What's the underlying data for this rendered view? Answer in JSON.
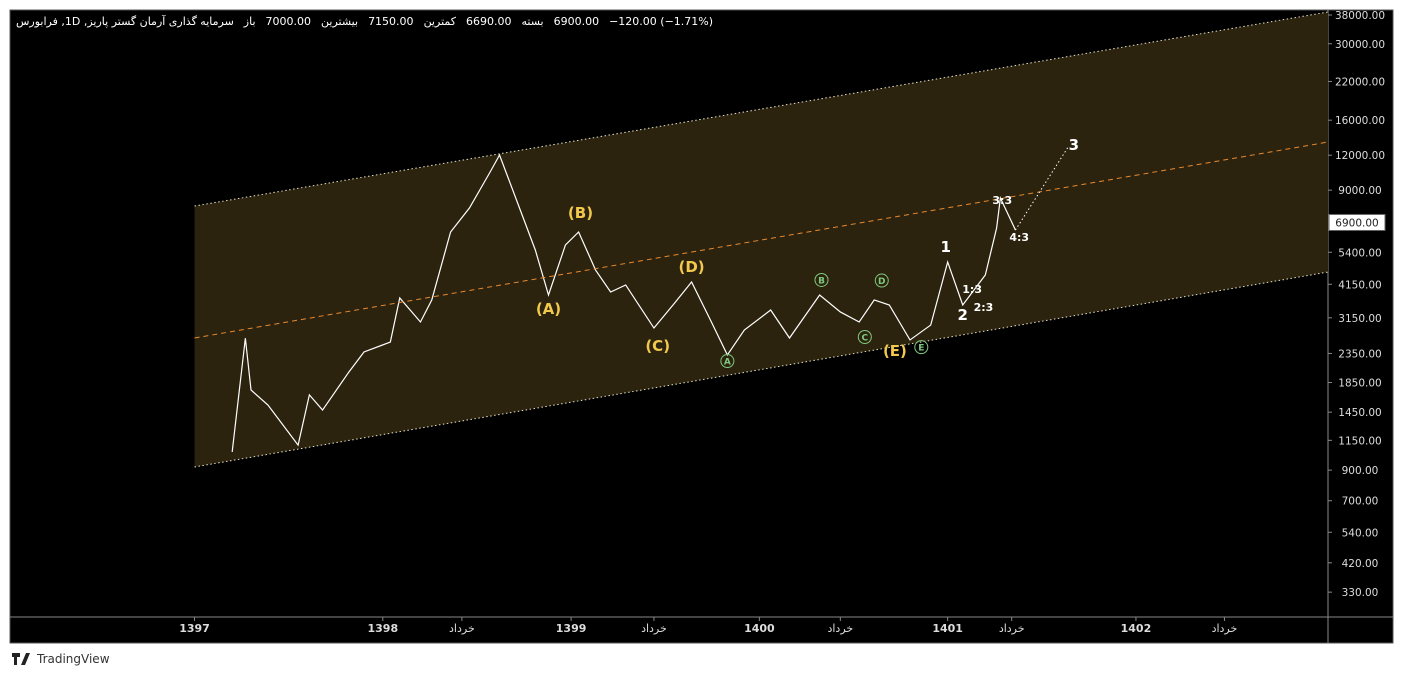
{
  "header": {
    "title": "سرمایه گذاری آرمان گستر پاریز, 1D, فرابورس",
    "open_label": "باز",
    "open": "7000.00",
    "high_label": "بیشترین",
    "high": "7150.00",
    "low_label": "کمترین",
    "low": "6690.00",
    "close_label": "بسته",
    "close": "6900.00",
    "change": "−120.00 (−1.71%)"
  },
  "footer": "TradingView",
  "chart_data": {
    "type": "line",
    "log_scale": true,
    "xlim": [
      1396.02,
      1403.02
    ],
    "ylim": [
      269,
      39600
    ],
    "xticks": [
      {
        "value": 1397,
        "label": "1397"
      },
      {
        "value": 1398,
        "label": "1398"
      },
      {
        "value": 1398.42,
        "label": "خرداد"
      },
      {
        "value": 1399,
        "label": "1399"
      },
      {
        "value": 1399.44,
        "label": "خرداد"
      },
      {
        "value": 1400,
        "label": "1400"
      },
      {
        "value": 1400.43,
        "label": "خرداد"
      },
      {
        "value": 1401,
        "label": "1401"
      },
      {
        "value": 1401.34,
        "label": "خرداد"
      },
      {
        "value": 1402,
        "label": "1402"
      },
      {
        "value": 1402.47,
        "label": "خرداد"
      }
    ],
    "yticks": [
      {
        "value": 38000,
        "label": "38000.00"
      },
      {
        "value": 30000,
        "label": "30000.00"
      },
      {
        "value": 22000,
        "label": "22000.00"
      },
      {
        "value": 16000,
        "label": "16000.00"
      },
      {
        "value": 12000,
        "label": "12000.00"
      },
      {
        "value": 9000,
        "label": "9000.00"
      },
      {
        "value": 5400,
        "label": "5400.00"
      },
      {
        "value": 4150,
        "label": "4150.00"
      },
      {
        "value": 3150,
        "label": "3150.00"
      },
      {
        "value": 2350,
        "label": "2350.00"
      },
      {
        "value": 1850,
        "label": "1850.00"
      },
      {
        "value": 1450,
        "label": "1450.00"
      },
      {
        "value": 1150,
        "label": "1150.00"
      },
      {
        "value": 900,
        "label": "900.00"
      },
      {
        "value": 700,
        "label": "700.00"
      },
      {
        "value": 540,
        "label": "540.00"
      },
      {
        "value": 420,
        "label": "420.00"
      },
      {
        "value": 330,
        "label": "330.00"
      }
    ],
    "last_price": {
      "value": 6900,
      "label": "6900.00"
    },
    "channel_fill": "#2c230f",
    "series": [
      {
        "color": "#ffffff",
        "style": "solid",
        "width": 1.2,
        "x": [
          1397.2,
          1397.27,
          1397.3,
          1397.39,
          1397.55,
          1397.61,
          1397.68,
          1397.82,
          1397.9,
          1398.04,
          1398.09,
          1398.2,
          1398.26,
          1398.36,
          1398.46,
          1398.57,
          1398.62,
          1398.73,
          1398.81,
          1398.88,
          1398.97,
          1399.04,
          1399.13,
          1399.21,
          1399.29,
          1399.44,
          1399.55,
          1399.64,
          1399.74,
          1399.83,
          1399.92,
          1400.06,
          1400.16,
          1400.32,
          1400.43,
          1400.53,
          1400.61,
          1400.69,
          1400.8,
          1400.91,
          1401.0,
          1401.08,
          1401.2,
          1401.26,
          1401.28,
          1401.36
        ],
        "values": [
          1045,
          2665,
          1740,
          1538,
          1106,
          1671,
          1475,
          2018,
          2378,
          2581,
          3709,
          3044,
          3648,
          6380,
          7771,
          10450,
          12016,
          7645,
          5502,
          3800,
          5734,
          6380,
          4666,
          3895,
          4127,
          2896,
          3557,
          4229,
          3093,
          2322,
          2850,
          3359,
          2668,
          3800,
          3306,
          3044,
          3648,
          3500,
          2626,
          2968,
          4986,
          3500,
          4480,
          6593,
          8436,
          6483
        ]
      },
      {
        "color": "#e6e0c8",
        "style": "dotted",
        "width": 1,
        "x": [
          1397.0,
          1403.02
        ],
        "values": [
          7898,
          38950
        ]
      },
      {
        "color": "#e8892e",
        "style": "dashed",
        "width": 1,
        "x": [
          1397.0,
          1403.02
        ],
        "values": [
          2668,
          13370
        ]
      },
      {
        "color": "#e6e0c8",
        "style": "dotted",
        "width": 1,
        "x": [
          1397.0,
          1403.02
        ],
        "values": [
          924,
          4591
        ]
      },
      {
        "color": "#ffffff",
        "style": "dotted",
        "width": 1,
        "x": [
          1401.36,
          1401.64
        ],
        "values": [
          6483,
          12840
        ]
      }
    ],
    "annotations": [
      {
        "text": "(A)",
        "x": 1398.88,
        "y": 3388,
        "color": "#f2c94c",
        "circle": false
      },
      {
        "text": "(B)",
        "x": 1399.05,
        "y": 7460,
        "color": "#f2c94c",
        "circle": false
      },
      {
        "text": "(C)",
        "x": 1399.46,
        "y": 2497,
        "color": "#f2c94c",
        "circle": false
      },
      {
        "text": "(D)",
        "x": 1399.64,
        "y": 4784,
        "color": "#f2c94c",
        "circle": false
      },
      {
        "text": "(E)",
        "x": 1400.72,
        "y": 2398,
        "color": "#f2c94c",
        "circle": false
      },
      {
        "text": "A",
        "x": 1399.83,
        "y": 2208,
        "color": "#7fc97f",
        "circle": true
      },
      {
        "text": "B",
        "x": 1400.33,
        "y": 4300,
        "color": "#7fc97f",
        "circle": true
      },
      {
        "text": "C",
        "x": 1400.56,
        "y": 2690,
        "color": "#7fc97f",
        "circle": true
      },
      {
        "text": "D",
        "x": 1400.65,
        "y": 4280,
        "color": "#7fc97f",
        "circle": true
      },
      {
        "text": "E",
        "x": 1400.86,
        "y": 2475,
        "color": "#7fc97f",
        "circle": true
      },
      {
        "text": "1",
        "x": 1400.99,
        "y": 5641,
        "color": "#ffffff",
        "circle": false
      },
      {
        "text": "2",
        "x": 1401.08,
        "y": 3222,
        "color": "#ffffff",
        "circle": false
      },
      {
        "text": "1:3",
        "x": 1401.13,
        "y": 4025,
        "color": "#ffffff",
        "circle": false
      },
      {
        "text": "2:3",
        "x": 1401.19,
        "y": 3470,
        "color": "#ffffff",
        "circle": false
      },
      {
        "text": "3:3",
        "x": 1401.29,
        "y": 8368,
        "color": "#ffffff",
        "circle": false
      },
      {
        "text": "4:3",
        "x": 1401.38,
        "y": 6175,
        "color": "#ffffff",
        "circle": false
      },
      {
        "text": "3",
        "x": 1401.67,
        "y": 13050,
        "color": "#ffffff",
        "circle": false
      }
    ]
  }
}
